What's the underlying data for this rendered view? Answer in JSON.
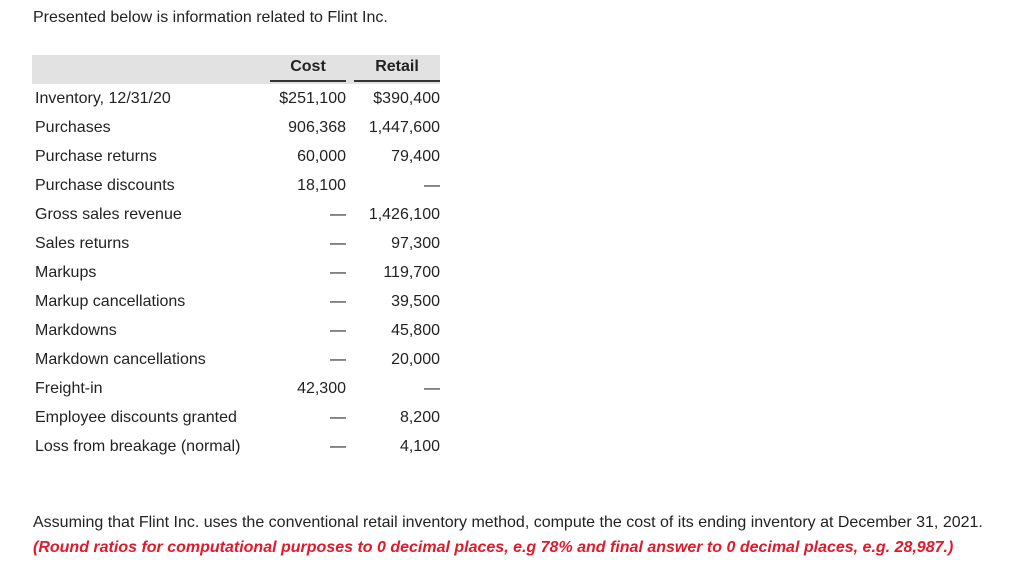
{
  "intro": "Presented below is information related to Flint Inc.",
  "table": {
    "headers": [
      "",
      "Cost",
      "Retail"
    ],
    "rows": [
      {
        "label": "Inventory, 12/31/20",
        "cost": "$251,100",
        "retail": "$390,400"
      },
      {
        "label": "Purchases",
        "cost": "906,368",
        "retail": "1,447,600"
      },
      {
        "label": "Purchase returns",
        "cost": "60,000",
        "retail": "79,400"
      },
      {
        "label": "Purchase discounts",
        "cost": "18,100",
        "retail": "—"
      },
      {
        "label": "Gross sales revenue",
        "cost": "—",
        "retail": "1,426,100"
      },
      {
        "label": "Sales returns",
        "cost": "—",
        "retail": "97,300"
      },
      {
        "label": "Markups",
        "cost": "—",
        "retail": "119,700"
      },
      {
        "label": "Markup cancellations",
        "cost": "—",
        "retail": "39,500"
      },
      {
        "label": "Markdowns",
        "cost": "—",
        "retail": "45,800"
      },
      {
        "label": "Markdown cancellations",
        "cost": "—",
        "retail": "20,000"
      },
      {
        "label": "Freight-in",
        "cost": "42,300",
        "retail": "—"
      },
      {
        "label": "Employee discounts granted",
        "cost": "—",
        "retail": "8,200"
      },
      {
        "label": "Loss from breakage (normal)",
        "cost": "—",
        "retail": "4,100"
      }
    ]
  },
  "question": {
    "text": "Assuming that Flint Inc. uses the conventional retail inventory method, compute the cost of its ending inventory at December 31, 2021. ",
    "instruction": "(Round ratios for computational purposes to 0 decimal places, e.g 78% and final answer to 0 decimal places, e.g. 28,987.)",
    "instruction_color": "#e0192b"
  }
}
